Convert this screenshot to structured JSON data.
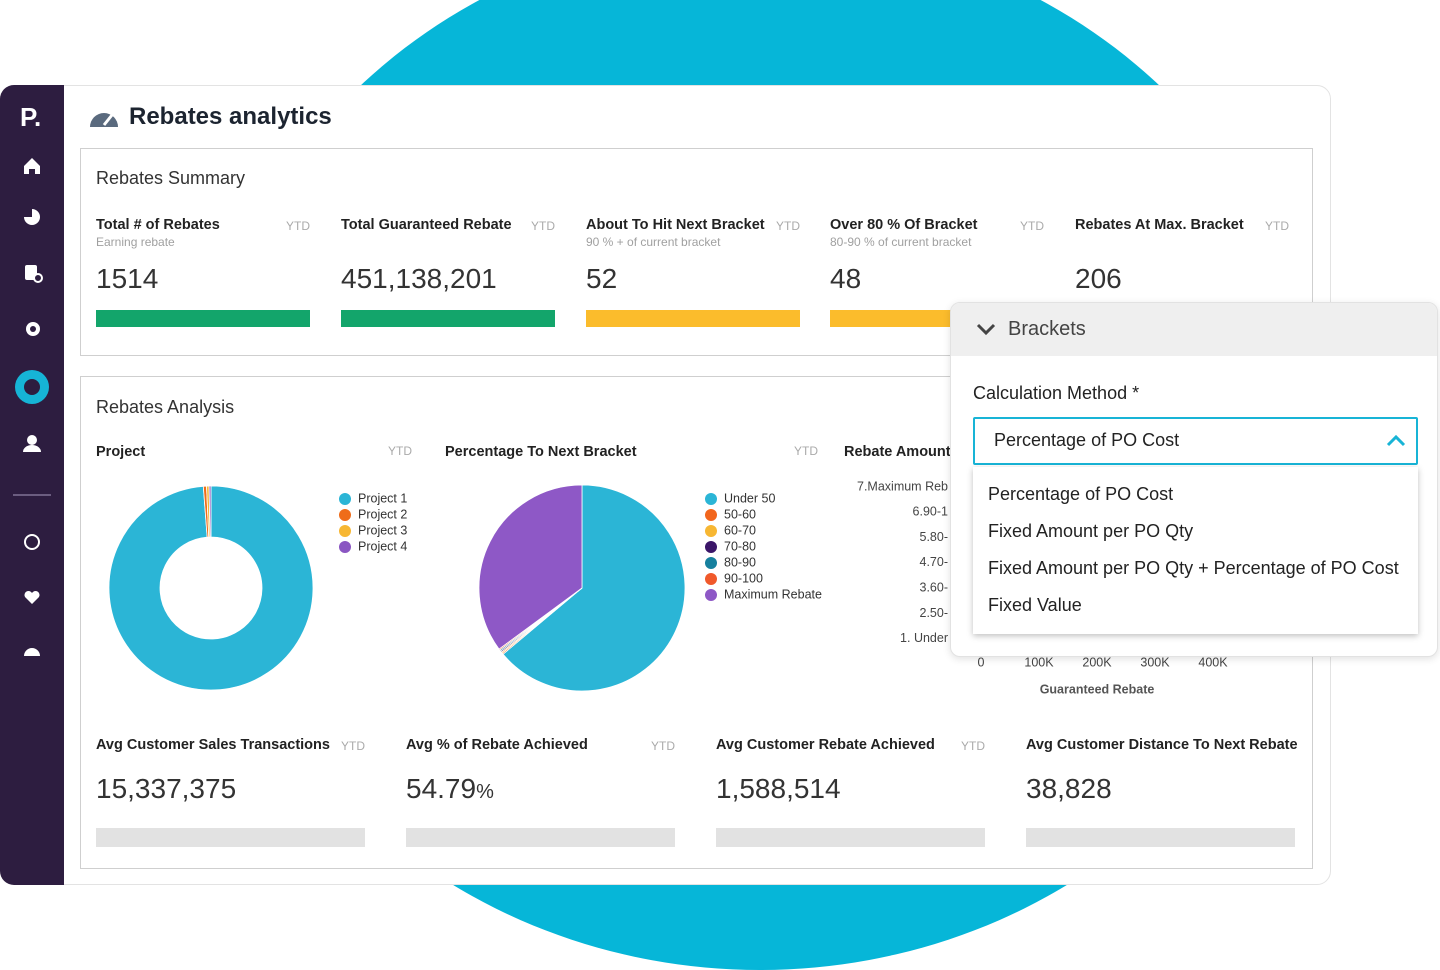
{
  "header": {
    "logo": "P.",
    "title": "Rebates analytics"
  },
  "summary": {
    "title": "Rebates Summary",
    "cards": [
      {
        "title": "Total # of Rebates",
        "subtitle": "Earning rebate",
        "period": "YTD",
        "value": "1514",
        "color": "#13a56b"
      },
      {
        "title": "Total Guaranteed Rebate",
        "period": "YTD",
        "value": "451,138,201",
        "color": "#13a56b"
      },
      {
        "title": "About To Hit Next Bracket",
        "subtitle": "90 % + of current bracket",
        "period": "YTD",
        "value": "52",
        "color": "#fbbc2c"
      },
      {
        "title": "Over 80 % Of Bracket",
        "subtitle": "80-90 % of current bracket",
        "period": "YTD",
        "value": "48",
        "color": "#fbbc2c"
      },
      {
        "title": "Rebates At Max. Bracket",
        "period": "YTD",
        "value": "206"
      }
    ]
  },
  "analysis": {
    "title": "Rebates Analysis",
    "averages": [
      {
        "title": "Avg  Customer Sales Transactions",
        "period": "YTD",
        "value": "15,337,375"
      },
      {
        "title": "Avg % of Rebate Achieved",
        "period": "YTD",
        "value": "54.79",
        "unit": "%"
      },
      {
        "title": "Avg  Customer Rebate Achieved",
        "period": "YTD",
        "value": "1,588,514"
      },
      {
        "title": "Avg  Customer Distance To Next Rebate",
        "value": "38,828"
      }
    ]
  },
  "chart_data": [
    {
      "type": "donut",
      "title": "Project",
      "period": "YTD",
      "categories": [
        "Project 1",
        "Project 2",
        "Project 3",
        "Project 4"
      ],
      "values": [
        98.8,
        0.5,
        0.4,
        0.3
      ],
      "colors": [
        "#2bb5d6",
        "#ef6c1a",
        "#f7b733",
        "#8a56c2"
      ]
    },
    {
      "type": "pie",
      "title": "Percentage To Next Bracket",
      "period": "YTD",
      "categories": [
        "Under 50",
        "50-60",
        "60-70",
        "70-80",
        "80-90",
        "90-100",
        "Maximum Rebate"
      ],
      "values": [
        63.9,
        0.2,
        0.2,
        0.2,
        0.2,
        0.2,
        35.1
      ],
      "colors": [
        "#2bb5d6",
        "#f2661d",
        "#f7b733",
        "#3b1668",
        "#16809e",
        "#f0592b",
        "#8e58c6"
      ]
    },
    {
      "type": "bar",
      "title": "Rebate Amount",
      "orientation": "horizontal",
      "categories": [
        "7.Maximum Reb",
        "6.90-1",
        "5.80-",
        "4.70-",
        "3.60-",
        "2.50-",
        "1. Under"
      ],
      "xlabel": "Guaranteed Rebate",
      "xlim": [
        0,
        400000
      ],
      "xticks": [
        0,
        {
          "value": 100000,
          "label": "100K"
        },
        {
          "value": 200000,
          "label": "200K"
        },
        {
          "value": 300000,
          "label": "300K"
        },
        {
          "value": 400000,
          "label": "400K"
        }
      ]
    }
  ],
  "brackets": {
    "title": "Brackets",
    "field_label": "Calculation Method *",
    "selected": "Percentage of PO Cost",
    "options": [
      "Percentage of PO Cost",
      "Fixed Amount per PO Qty",
      "Fixed Amount per PO Qty + Percentage of PO Cost",
      "Fixed Value"
    ]
  }
}
